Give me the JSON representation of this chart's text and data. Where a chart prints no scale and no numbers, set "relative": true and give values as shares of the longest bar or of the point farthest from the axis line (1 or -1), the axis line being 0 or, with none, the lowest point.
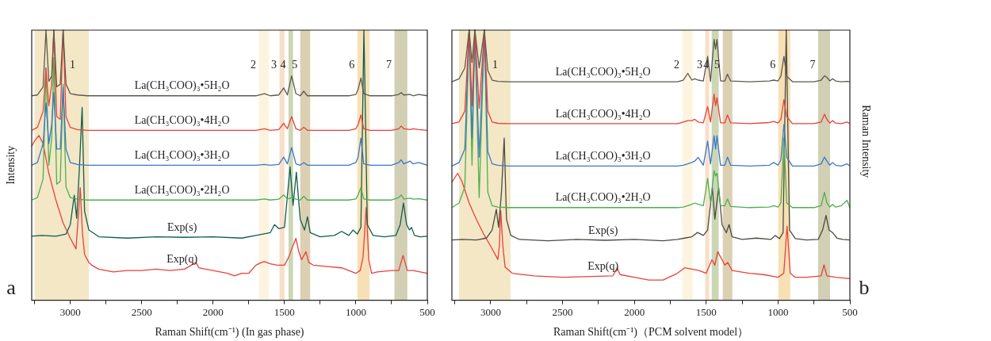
{
  "chart_data": [
    {
      "type": "line",
      "relative": true,
      "xlabel": "Raman Shift(cm⁻¹) (In gas phase)",
      "ylabel": "Intensity",
      "annotations": [
        "a"
      ],
      "legend": false,
      "grid": false,
      "xlim": [
        3270,
        500
      ],
      "xticks": [
        {
          "value": 3250,
          "label": null
        },
        3000,
        {
          "value": 2750,
          "label": null
        },
        2500,
        {
          "value": 2250,
          "label": null
        },
        2000,
        {
          "value": 1750,
          "label": null
        },
        1500,
        {
          "value": 1250,
          "label": null
        },
        1000,
        {
          "value": 750,
          "label": null
        },
        500
      ],
      "bands": [
        {
          "axis": "x",
          "from": 3250,
          "to": 2870,
          "label": "1",
          "color": "#f3e7c6"
        },
        {
          "axis": "x",
          "from": 1680,
          "to": 1610,
          "label": "2",
          "color": "#fcf4df"
        },
        {
          "axis": "x",
          "from": 1535,
          "to": 1500,
          "label": "3",
          "color": "#f8dfc8"
        },
        {
          "axis": "x",
          "from": 1472,
          "to": 1440,
          "label": "4",
          "color": "#cdd6b4"
        },
        {
          "axis": "x",
          "from": 1390,
          "to": 1320,
          "label": "5",
          "color": "#dcd0b3"
        },
        {
          "axis": "x",
          "from": 990,
          "to": 905,
          "label": "6",
          "color": "#f7e0b5"
        },
        {
          "axis": "x",
          "from": 730,
          "to": 640,
          "label": "7",
          "color": "#d1cfb4"
        }
      ],
      "x": [
        3270,
        3230,
        3190,
        3170,
        3150,
        3130,
        3115,
        3095,
        3070,
        3050,
        3030,
        3000,
        2950,
        2880,
        2600,
        2300,
        2000,
        1700,
        1640,
        1600,
        1540,
        1506,
        1480,
        1450,
        1420,
        1390,
        1365,
        1340,
        1200,
        1050,
        1000,
        985,
        965,
        945,
        900,
        750,
        700,
        683,
        665,
        620,
        600,
        560,
        500
      ],
      "series": [
        {
          "name": "La(CH₃COO)₃•5H₂O",
          "color": "#5a5a4e",
          "values": [
            0.757,
            0.76,
            0.79,
            1,
            0.81,
            0.83,
            1,
            0.79,
            0.8,
            1,
            0.8,
            0.765,
            0.76,
            0.757,
            0.757,
            0.757,
            0.757,
            0.757,
            0.765,
            0.757,
            0.76,
            0.786,
            0.76,
            0.831,
            0.765,
            0.757,
            0.774,
            0.757,
            0.757,
            0.757,
            0.762,
            0.78,
            0.823,
            0.765,
            0.757,
            0.757,
            0.762,
            0.769,
            0.76,
            0.762,
            0.757,
            0.762,
            0.757
          ]
        },
        {
          "name": "La(CH₃COO)₃•4H₂O",
          "color": "#e8413a",
          "values": [
            0.629,
            0.64,
            0.7,
            0.86,
            0.72,
            0.8,
            1,
            0.68,
            0.67,
            1,
            0.68,
            0.64,
            0.632,
            0.629,
            0.629,
            0.629,
            0.629,
            0.629,
            0.635,
            0.629,
            0.632,
            0.655,
            0.635,
            0.68,
            0.635,
            0.629,
            0.64,
            0.629,
            0.629,
            0.629,
            0.635,
            0.65,
            0.686,
            0.635,
            0.629,
            0.629,
            0.635,
            0.645,
            0.635,
            0.632,
            0.635,
            0.632,
            0.629
          ]
        },
        {
          "name": "La(CH₃COO)₃•3H₂O",
          "color": "#3a78c9",
          "values": [
            0.5,
            0.51,
            0.58,
            0.731,
            0.58,
            0.65,
            0.77,
            0.56,
            0.56,
            0.79,
            0.56,
            0.51,
            0.503,
            0.5,
            0.5,
            0.5,
            0.5,
            0.5,
            0.503,
            0.5,
            0.503,
            0.53,
            0.505,
            0.566,
            0.505,
            0.5,
            0.51,
            0.5,
            0.5,
            0.5,
            0.51,
            0.53,
            0.6,
            0.505,
            0.5,
            0.5,
            0.51,
            0.52,
            0.505,
            0.515,
            0.505,
            0.51,
            0.5
          ]
        },
        {
          "name": "La(CH₃COO)₃•2H₂O",
          "color": "#4caf50",
          "values": [
            0.371,
            0.38,
            0.45,
            0.86,
            0.5,
            0.6,
            0.9,
            0.43,
            0.44,
            0.8,
            0.42,
            0.38,
            0.374,
            0.371,
            0.371,
            0.371,
            0.371,
            0.371,
            0.375,
            0.371,
            0.374,
            0.39,
            0.375,
            0.38,
            0.374,
            0.371,
            0.385,
            0.371,
            0.371,
            0.371,
            0.375,
            0.39,
            0.417,
            0.375,
            0.371,
            0.371,
            0.38,
            0.39,
            0.375,
            0.378,
            0.374,
            0.376,
            0.371
          ]
        },
        {
          "name": "Exp(s)",
          "color": "#0f5e4e",
          "x": [
            3270,
            3200,
            3100,
            3030,
            3000,
            2972,
            2955,
            2935,
            2917,
            2900,
            2870,
            2800,
            2600,
            2400,
            2200,
            2000,
            1800,
            1700,
            1650,
            1600,
            1570,
            1540,
            1500,
            1461,
            1440,
            1417,
            1390,
            1360,
            1339,
            1320,
            1250,
            1150,
            1100,
            1050,
            1020,
            990,
            965,
            944,
            920,
            880,
            800,
            720,
            690,
            667,
            645,
            625,
            611,
            590,
            550,
            500
          ],
          "values": [
            0.237,
            0.24,
            0.237,
            0.245,
            0.28,
            0.389,
            0.303,
            0.5,
            0.714,
            0.33,
            0.26,
            0.235,
            0.23,
            0.235,
            0.233,
            0.235,
            0.23,
            0.24,
            0.245,
            0.25,
            0.28,
            0.265,
            0.27,
            0.494,
            0.351,
            0.474,
            0.3,
            0.26,
            0.309,
            0.25,
            0.235,
            0.24,
            0.255,
            0.24,
            0.26,
            0.245,
            0.27,
            1,
            0.28,
            0.24,
            0.235,
            0.24,
            0.28,
            0.36,
            0.28,
            0.26,
            0.27,
            0.24,
            0.235,
            0.237
          ]
        },
        {
          "name": "Exp(q)",
          "color": "#e8413a",
          "x": [
            3270,
            3250,
            3220,
            3190,
            3150,
            3100,
            3050,
            3000,
            2960,
            2945,
            2930,
            2915,
            2900,
            2870,
            2850,
            2800,
            2700,
            2600,
            2500,
            2400,
            2300,
            2200,
            2120,
            2100,
            2000,
            1900,
            1850,
            1800,
            1750,
            1700,
            1660,
            1640,
            1600,
            1550,
            1500,
            1470,
            1450,
            1420,
            1400,
            1380,
            1350,
            1330,
            1300,
            1200,
            1100,
            1050,
            1000,
            970,
            950,
            928,
            910,
            890,
            850,
            750,
            700,
            670,
            640,
            600,
            550,
            500
          ],
          "values": [
            0.57,
            0.59,
            0.61,
            0.58,
            0.47,
            0.37,
            0.286,
            0.23,
            0.19,
            0.3,
            0.417,
            0.25,
            0.17,
            0.14,
            0.13,
            0.115,
            0.105,
            0.11,
            0.11,
            0.115,
            0.11,
            0.115,
            0.14,
            0.12,
            0.11,
            0.1,
            0.09,
            0.1,
            0.1,
            0.13,
            0.14,
            0.143,
            0.135,
            0.13,
            0.13,
            0.16,
            0.19,
            0.229,
            0.18,
            0.15,
            0.18,
            0.14,
            0.13,
            0.125,
            0.12,
            0.11,
            0.1,
            0.11,
            0.16,
            0.343,
            0.15,
            0.1,
            0.105,
            0.11,
            0.11,
            0.166,
            0.11,
            0.11,
            0.105,
            0.1
          ]
        }
      ]
    },
    {
      "type": "line",
      "relative": true,
      "xlabel": "Raman Shift(cm⁻¹)（PCM solvent model）",
      "y2label": "Raman Intensity",
      "annotations": [
        "b"
      ],
      "legend": false,
      "grid": false,
      "xlim": [
        3270,
        500
      ],
      "xticks": [
        {
          "value": 3250,
          "label": null
        },
        3000,
        {
          "value": 2750,
          "label": null
        },
        2500,
        {
          "value": 2250,
          "label": null
        },
        2000,
        {
          "value": 1750,
          "label": null
        },
        1500,
        {
          "value": 1250,
          "label": null
        },
        1000,
        {
          "value": 750,
          "label": null
        },
        500
      ],
      "bands": [
        {
          "axis": "x",
          "from": 3220,
          "to": 2862,
          "label": "1",
          "color": "#f3e7c6"
        },
        {
          "axis": "x",
          "from": 1667,
          "to": 1595,
          "label": "2",
          "color": "#fcf4df"
        },
        {
          "axis": "x",
          "from": 1507,
          "to": 1479,
          "label": "3",
          "color": "#f8dfc8"
        },
        {
          "axis": "x",
          "from": 1462,
          "to": 1413,
          "label": "4",
          "color": "#cdd6b4"
        },
        {
          "axis": "x",
          "from": 1385,
          "to": 1318,
          "label": "5",
          "color": "#dcd0b3"
        },
        {
          "axis": "x",
          "from": 998,
          "to": 915,
          "label": "6",
          "color": "#f7e0b5"
        },
        {
          "axis": "x",
          "from": 721,
          "to": 638,
          "label": "7",
          "color": "#d1cfb4"
        }
      ],
      "x": [
        3270,
        3220,
        3180,
        3150,
        3130,
        3110,
        3080,
        3044,
        3020,
        2990,
        2950,
        2880,
        2600,
        2300,
        2000,
        1700,
        1660,
        1628,
        1600,
        1580,
        1556,
        1520,
        1490,
        1470,
        1445,
        1435,
        1425,
        1400,
        1370,
        1352,
        1330,
        1200,
        1060,
        1030,
        1000,
        980,
        959,
        940,
        900,
        750,
        700,
        677,
        660,
        640,
        620,
        600,
        560,
        520,
        500
      ],
      "series": [
        {
          "name": "La(CH₃COO)₃•5H₂O",
          "color": "#5a5a4e",
          "values": [
            0.809,
            0.82,
            0.86,
            1,
            0.88,
            1,
            0.86,
            1,
            0.85,
            0.815,
            0.81,
            0.809,
            0.809,
            0.809,
            0.809,
            0.809,
            0.815,
            0.84,
            0.815,
            0.82,
            0.815,
            0.812,
            0.903,
            0.81,
            0.966,
            0.93,
            0.966,
            0.812,
            0.812,
            0.837,
            0.812,
            0.809,
            0.812,
            0.815,
            0.812,
            0.83,
            0.903,
            0.83,
            0.809,
            0.809,
            0.815,
            0.831,
            0.825,
            0.812,
            0.82,
            0.812,
            0.809,
            0.81,
            0.809
          ]
        },
        {
          "name": "La(CH₃COO)₃•4H₂O",
          "color": "#e8413a",
          "values": [
            0.654,
            0.66,
            0.7,
            1,
            0.72,
            1,
            0.71,
            1,
            0.7,
            0.66,
            0.655,
            0.654,
            0.654,
            0.654,
            0.654,
            0.654,
            0.66,
            0.665,
            0.665,
            0.67,
            0.66,
            0.657,
            0.717,
            0.66,
            0.763,
            0.72,
            0.75,
            0.657,
            0.657,
            0.686,
            0.657,
            0.654,
            0.658,
            0.662,
            0.656,
            0.67,
            0.743,
            0.68,
            0.654,
            0.654,
            0.66,
            0.689,
            0.67,
            0.656,
            0.665,
            0.656,
            0.654,
            0.66,
            0.654
          ]
        },
        {
          "name": "La(CH₃COO)₃•3H₂O",
          "color": "#3a78c9",
          "values": [
            0.497,
            0.51,
            0.56,
            1,
            0.6,
            1,
            0.53,
            1,
            0.55,
            0.505,
            0.5,
            0.497,
            0.497,
            0.497,
            0.497,
            0.497,
            0.5,
            0.505,
            0.51,
            0.515,
            0.529,
            0.5,
            0.589,
            0.505,
            0.609,
            0.56,
            0.609,
            0.5,
            0.5,
            0.53,
            0.5,
            0.497,
            0.5,
            0.51,
            0.5,
            0.52,
            0.651,
            0.53,
            0.497,
            0.497,
            0.505,
            0.53,
            0.515,
            0.5,
            0.51,
            0.5,
            0.497,
            0.505,
            0.497
          ]
        },
        {
          "name": "La(CH₃COO)₃•2H₂O",
          "color": "#4caf50",
          "values": [
            0.343,
            0.36,
            0.42,
            1,
            0.5,
            1,
            0.38,
            1,
            0.4,
            0.35,
            0.345,
            0.343,
            0.343,
            0.343,
            0.343,
            0.343,
            0.345,
            0.35,
            0.355,
            0.36,
            0.355,
            0.35,
            0.451,
            0.36,
            0.48,
            0.46,
            0.47,
            0.35,
            0.35,
            0.375,
            0.347,
            0.343,
            0.345,
            0.35,
            0.345,
            0.36,
            0.6,
            0.36,
            0.343,
            0.343,
            0.35,
            0.4,
            0.36,
            0.345,
            0.355,
            0.345,
            0.35,
            0.37,
            0.343
          ]
        },
        {
          "name": "Exp(s)",
          "color": "#4b4b42",
          "x": [
            3270,
            3200,
            3100,
            3030,
            2990,
            2961,
            2945,
            2925,
            2906,
            2890,
            2860,
            2800,
            2600,
            2400,
            2200,
            2000,
            1800,
            1700,
            1650,
            1600,
            1560,
            1520,
            1490,
            1457,
            1440,
            1413,
            1390,
            1360,
            1341,
            1320,
            1250,
            1150,
            1050,
            1020,
            990,
            965,
            943,
            920,
            880,
            800,
            720,
            690,
            666,
            645,
            620,
            590,
            550,
            500
          ],
          "values": [
            0.223,
            0.225,
            0.223,
            0.23,
            0.26,
            0.337,
            0.27,
            0.4,
            0.6,
            0.3,
            0.24,
            0.225,
            0.22,
            0.225,
            0.222,
            0.225,
            0.22,
            0.225,
            0.23,
            0.235,
            0.251,
            0.24,
            0.26,
            0.417,
            0.3,
            0.417,
            0.28,
            0.25,
            0.28,
            0.235,
            0.225,
            0.23,
            0.225,
            0.24,
            0.228,
            0.25,
            1,
            0.26,
            0.228,
            0.223,
            0.225,
            0.26,
            0.314,
            0.26,
            0.25,
            0.23,
            0.225,
            0.223
          ]
        },
        {
          "name": "Exp(q)",
          "color": "#e8413a",
          "x": [
            3270,
            3230,
            3200,
            3150,
            3100,
            3050,
            3000,
            2950,
            2940,
            2930,
            2915,
            2900,
            2850,
            2700,
            2500,
            2300,
            2150,
            2120,
            2100,
            2000,
            1900,
            1800,
            1700,
            1650,
            1600,
            1550,
            1500,
            1460,
            1440,
            1420,
            1400,
            1370,
            1350,
            1320,
            1200,
            1100,
            1000,
            960,
            937,
            915,
            880,
            800,
            700,
            680,
            660,
            600,
            500
          ],
          "values": [
            0.437,
            0.47,
            0.44,
            0.36,
            0.3,
            0.246,
            0.2,
            0.151,
            0.2,
            0.331,
            0.2,
            0.123,
            0.1,
            0.09,
            0.085,
            0.088,
            0.09,
            0.12,
            0.095,
            0.085,
            0.075,
            0.075,
            0.1,
            0.12,
            0.115,
            0.11,
            0.1,
            0.15,
            0.13,
            0.18,
            0.16,
            0.13,
            0.14,
            0.11,
            0.1,
            0.095,
            0.085,
            0.1,
            0.274,
            0.1,
            0.085,
            0.085,
            0.09,
            0.131,
            0.09,
            0.085,
            0.08
          ]
        }
      ]
    }
  ]
}
